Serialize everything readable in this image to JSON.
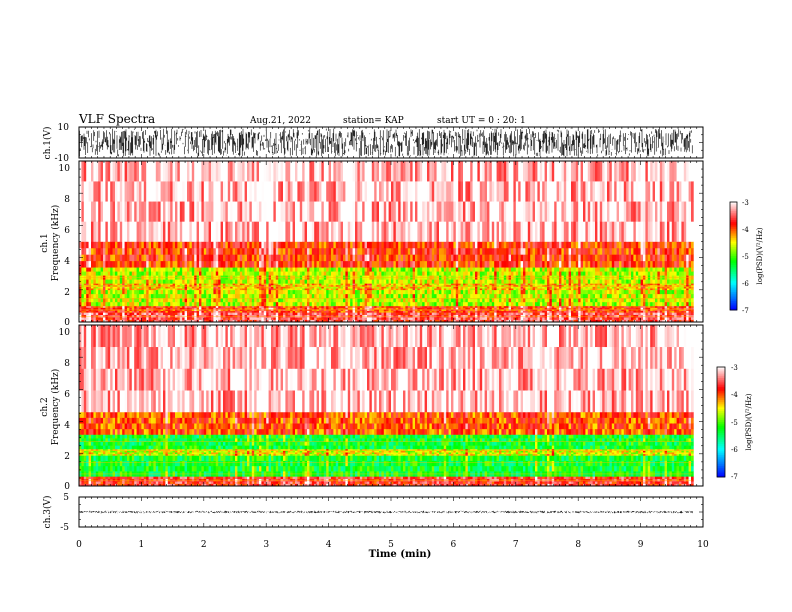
{
  "header": {
    "title": "VLF Spectra",
    "date": "Aug.21, 2022",
    "station": "station= KAP",
    "start_ut": "start UT =  0 : 20: 1"
  },
  "chart_data": [
    {
      "id": "ch1-waveform",
      "type": "line",
      "ylabel": "ch.1(V)",
      "ylim": [
        -10,
        10
      ],
      "yticks": [
        "10",
        "-10"
      ],
      "xlim": [
        0,
        10
      ],
      "x_data_end": 9.83,
      "description_values": {
        "typical_amplitude": [
          -9,
          9
        ]
      }
    },
    {
      "id": "ch1-spectrogram",
      "type": "heatmap",
      "ylabel_line1": "ch.1",
      "ylabel_line2": "Frequency (kHz)",
      "ylim": [
        0,
        10
      ],
      "yticks": [
        "0",
        "2",
        "4",
        "6",
        "8",
        "10"
      ],
      "xlim": [
        0,
        10
      ],
      "x_data_end": 9.83,
      "colorbar": {
        "label": "log(PSD)(V²/Hz)",
        "range": [
          -7,
          -3
        ],
        "ticks": [
          "-3",
          "-4",
          "-5",
          "-6",
          "-7"
        ]
      },
      "bands": [
        {
          "fmin": 0.0,
          "fmax": 0.6,
          "level": -3.6
        },
        {
          "fmin": 0.6,
          "fmax": 1.0,
          "level": -3.9
        },
        {
          "fmin": 1.0,
          "fmax": 2.0,
          "level": -4.7
        },
        {
          "fmin": 2.0,
          "fmax": 2.4,
          "level": -4.4
        },
        {
          "fmin": 2.4,
          "fmax": 3.4,
          "level": -4.7
        },
        {
          "fmin": 3.4,
          "fmax": 5.0,
          "level": -3.9
        },
        {
          "fmin": 5.0,
          "fmax": 10.0,
          "level": -3.2
        }
      ]
    },
    {
      "id": "ch2-spectrogram",
      "type": "heatmap",
      "ylabel_line1": "ch.2",
      "ylabel_line2": "Frequency (kHz)",
      "ylim": [
        0,
        10
      ],
      "yticks": [
        "0",
        "2",
        "4",
        "6",
        "8",
        "10"
      ],
      "xlim": [
        0,
        10
      ],
      "x_data_end": 9.83,
      "colorbar": {
        "label": "log(PSD)(V²/Hz)",
        "range": [
          -7,
          -3
        ],
        "ticks": [
          "-3",
          "-4",
          "-5",
          "-6",
          "-7"
        ]
      },
      "bands": [
        {
          "fmin": 0.0,
          "fmax": 0.6,
          "level": -3.7
        },
        {
          "fmin": 0.6,
          "fmax": 1.9,
          "level": -5.3
        },
        {
          "fmin": 1.9,
          "fmax": 2.3,
          "level": -4.6
        },
        {
          "fmin": 2.3,
          "fmax": 3.2,
          "level": -5.3
        },
        {
          "fmin": 3.2,
          "fmax": 4.6,
          "level": -4.0
        },
        {
          "fmin": 4.6,
          "fmax": 10.0,
          "level": -3.2
        }
      ]
    },
    {
      "id": "ch3-waveform",
      "type": "line",
      "ylabel": "ch.3(V)",
      "ylim": [
        -5,
        5
      ],
      "yticks": [
        "5",
        "-5"
      ],
      "xlim": [
        0,
        10
      ],
      "x_data_end": 9.83,
      "description_values": {
        "typical_amplitude": [
          -0.4,
          0.4
        ]
      },
      "xlabel": "Time (min)",
      "xticks": [
        "0",
        "1",
        "2",
        "3",
        "4",
        "5",
        "6",
        "7",
        "8",
        "9",
        "10"
      ]
    }
  ],
  "colors": {
    "colormap": [
      "#0000ff",
      "#00ffff",
      "#00ff00",
      "#ffff00",
      "#ff0000",
      "#ffffff"
    ],
    "trace": "#000000"
  }
}
